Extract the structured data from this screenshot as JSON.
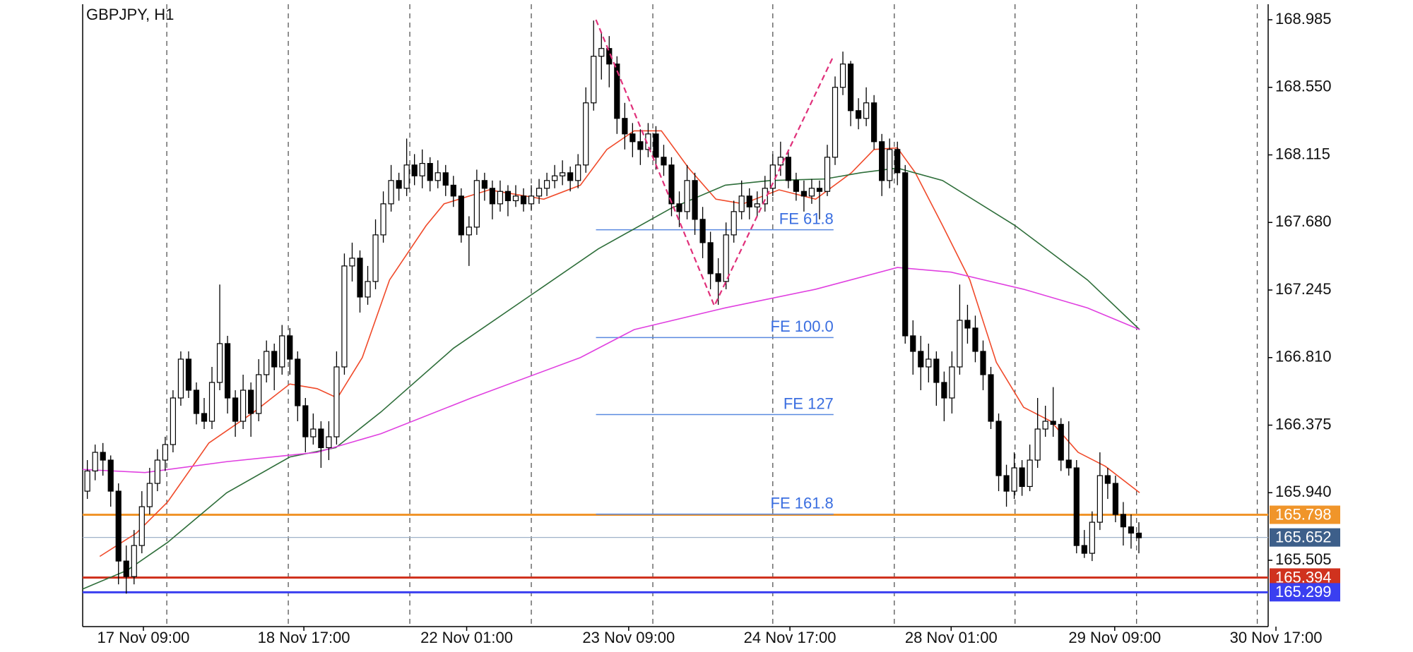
{
  "chart_data": {
    "type": "candlestick",
    "title": "GBPJPY, H1",
    "ylim": [
      165.078,
      169.085
    ],
    "xlim": [
      -0.6,
      151.6
    ],
    "yticks": [
      168.985,
      {
        "value": 168.55,
        "label": "168.550"
      },
      168.115,
      {
        "value": 167.68,
        "label": "167.680"
      },
      167.245,
      {
        "value": 166.81,
        "label": "166.810"
      },
      166.375,
      {
        "value": 165.94,
        "label": "165.940"
      },
      165.505
    ],
    "xticks": [
      {
        "value": 7.2,
        "label": "17 Nov 09:00"
      },
      {
        "value": 27.8,
        "label": "18 Nov 17:00"
      },
      {
        "value": 48.7,
        "label": "22 Nov 01:00"
      },
      {
        "value": 69.5,
        "label": "23 Nov 09:00"
      },
      {
        "value": 90.2,
        "label": "24 Nov 17:00"
      },
      {
        "value": 110.9,
        "label": "28 Nov 01:00"
      },
      {
        "value": 131.9,
        "label": "29 Nov 09:00"
      },
      {
        "value": 152.6,
        "label": "30 Nov 17:00"
      }
    ],
    "vgrid": [
      10.2,
      25.8,
      41.4,
      57,
      72.6,
      88,
      103.6,
      119.1,
      134.7,
      150.2
    ],
    "candles": [
      [
        165.95,
        166.15,
        165.9,
        166.08
      ],
      [
        166.08,
        166.25,
        166.02,
        166.2
      ],
      [
        166.2,
        166.26,
        166.05,
        166.15
      ],
      [
        166.15,
        166.18,
        165.85,
        165.95
      ],
      [
        165.95,
        166.0,
        165.35,
        165.5
      ],
      [
        165.5,
        165.6,
        165.29,
        165.4
      ],
      [
        165.4,
        165.7,
        165.35,
        165.6
      ],
      [
        165.6,
        165.95,
        165.55,
        165.85
      ],
      [
        165.85,
        166.1,
        165.8,
        166.0
      ],
      [
        166.0,
        166.22,
        165.95,
        166.15
      ],
      [
        166.15,
        166.3,
        166.08,
        166.25
      ],
      [
        166.25,
        166.6,
        166.2,
        166.55
      ],
      [
        166.55,
        166.85,
        166.5,
        166.8
      ],
      [
        166.8,
        166.85,
        166.55,
        166.6
      ],
      [
        166.6,
        166.65,
        166.38,
        166.45
      ],
      [
        166.45,
        166.55,
        166.35,
        166.4
      ],
      [
        166.4,
        166.75,
        166.35,
        166.65
      ],
      [
        166.65,
        167.28,
        166.6,
        166.9
      ],
      [
        166.9,
        166.95,
        166.45,
        166.55
      ],
      [
        166.55,
        166.6,
        166.3,
        166.4
      ],
      [
        166.4,
        166.7,
        166.35,
        166.6
      ],
      [
        166.6,
        166.65,
        166.3,
        166.45
      ],
      [
        166.45,
        166.8,
        166.4,
        166.7
      ],
      [
        166.7,
        166.92,
        166.65,
        166.85
      ],
      [
        166.85,
        166.9,
        166.6,
        166.75
      ],
      [
        166.75,
        167.02,
        166.7,
        166.95
      ],
      [
        166.95,
        167.0,
        166.7,
        166.8
      ],
      [
        166.8,
        166.85,
        166.4,
        166.5
      ],
      [
        166.5,
        166.55,
        166.2,
        166.3
      ],
      [
        166.3,
        166.45,
        166.25,
        166.35
      ],
      [
        166.35,
        166.4,
        166.1,
        166.23
      ],
      [
        166.23,
        166.4,
        166.15,
        166.3
      ],
      [
        166.3,
        166.85,
        166.25,
        166.75
      ],
      [
        166.75,
        167.48,
        166.7,
        167.4
      ],
      [
        167.4,
        167.55,
        167.3,
        167.45
      ],
      [
        167.45,
        167.5,
        167.1,
        167.2
      ],
      [
        167.2,
        167.4,
        167.15,
        167.3
      ],
      [
        167.3,
        167.7,
        167.25,
        167.6
      ],
      [
        167.6,
        167.88,
        167.55,
        167.8
      ],
      [
        167.8,
        168.05,
        167.75,
        167.95
      ],
      [
        167.95,
        168.0,
        167.82,
        167.9
      ],
      [
        167.9,
        168.22,
        167.85,
        168.05
      ],
      [
        168.05,
        168.12,
        167.92,
        167.98
      ],
      [
        167.98,
        168.15,
        167.9,
        168.06
      ],
      [
        168.06,
        168.1,
        167.88,
        167.95
      ],
      [
        167.95,
        168.08,
        167.9,
        168.0
      ],
      [
        168.0,
        168.05,
        167.85,
        167.92
      ],
      [
        167.92,
        167.98,
        167.78,
        167.85
      ],
      [
        167.85,
        167.9,
        167.55,
        167.6
      ],
      [
        167.6,
        167.72,
        167.4,
        167.65
      ],
      [
        167.65,
        168.02,
        167.6,
        167.95
      ],
      [
        167.95,
        168.0,
        167.82,
        167.9
      ],
      [
        167.9,
        167.95,
        167.7,
        167.8
      ],
      [
        167.8,
        167.95,
        167.75,
        167.88
      ],
      [
        167.88,
        167.92,
        167.72,
        167.82
      ],
      [
        167.82,
        167.92,
        167.78,
        167.85
      ],
      [
        167.85,
        167.9,
        167.75,
        167.8
      ],
      [
        167.8,
        167.92,
        167.76,
        167.85
      ],
      [
        167.85,
        167.96,
        167.8,
        167.9
      ],
      [
        167.9,
        168.0,
        167.85,
        167.95
      ],
      [
        167.95,
        168.05,
        167.9,
        167.98
      ],
      [
        167.98,
        168.08,
        167.92,
        168.0
      ],
      [
        168.0,
        168.04,
        167.88,
        167.95
      ],
      [
        167.95,
        168.12,
        167.9,
        168.05
      ],
      [
        168.05,
        168.55,
        168.0,
        168.45
      ],
      [
        168.45,
        168.98,
        168.4,
        168.75
      ],
      [
        168.75,
        168.9,
        168.6,
        168.8
      ],
      [
        168.8,
        168.88,
        168.55,
        168.7
      ],
      [
        168.7,
        168.75,
        168.25,
        168.35
      ],
      [
        168.35,
        168.45,
        168.15,
        168.25
      ],
      [
        168.25,
        168.32,
        168.1,
        168.2
      ],
      [
        168.2,
        168.28,
        168.05,
        168.15
      ],
      [
        168.15,
        168.32,
        168.1,
        168.25
      ],
      [
        168.25,
        168.3,
        168.02,
        168.1
      ],
      [
        168.1,
        168.18,
        167.98,
        168.05
      ],
      [
        168.05,
        168.1,
        167.72,
        167.8
      ],
      [
        167.8,
        167.88,
        167.65,
        167.75
      ],
      [
        167.75,
        168.05,
        167.7,
        167.95
      ],
      [
        167.95,
        168.0,
        167.6,
        167.7
      ],
      [
        167.7,
        167.78,
        167.45,
        167.55
      ],
      [
        167.55,
        167.62,
        167.25,
        167.35
      ],
      [
        167.35,
        167.45,
        167.15,
        167.3
      ],
      [
        167.3,
        167.68,
        167.25,
        167.6
      ],
      [
        167.6,
        167.82,
        167.55,
        167.75
      ],
      [
        167.75,
        167.95,
        167.7,
        167.85
      ],
      [
        167.85,
        167.9,
        167.7,
        167.78
      ],
      [
        167.78,
        167.88,
        167.72,
        167.8
      ],
      [
        167.8,
        167.98,
        167.75,
        167.9
      ],
      [
        167.9,
        168.12,
        167.85,
        168.05
      ],
      [
        168.05,
        168.2,
        167.98,
        168.1
      ],
      [
        168.1,
        168.15,
        167.9,
        167.95
      ],
      [
        167.95,
        168.0,
        167.82,
        167.88
      ],
      [
        167.88,
        167.95,
        167.75,
        167.85
      ],
      [
        167.85,
        167.96,
        167.8,
        167.9
      ],
      [
        167.9,
        167.95,
        167.7,
        167.88
      ],
      [
        167.88,
        168.18,
        167.85,
        168.1
      ],
      [
        168.1,
        168.62,
        168.05,
        168.55
      ],
      [
        168.55,
        168.78,
        168.5,
        168.7
      ],
      [
        168.7,
        168.72,
        168.3,
        168.4
      ],
      [
        168.4,
        168.48,
        168.28,
        168.35
      ],
      [
        168.35,
        168.55,
        168.3,
        168.45
      ],
      [
        168.45,
        168.5,
        168.15,
        168.2
      ],
      [
        168.2,
        168.25,
        167.85,
        167.95
      ],
      [
        167.95,
        168.22,
        167.9,
        168.15
      ],
      [
        168.15,
        168.2,
        167.92,
        168.0
      ],
      [
        168.0,
        168.05,
        166.9,
        166.95
      ],
      [
        166.95,
        167.05,
        166.7,
        166.85
      ],
      [
        166.85,
        166.95,
        166.6,
        166.75
      ],
      [
        166.75,
        166.9,
        166.65,
        166.8
      ],
      [
        166.8,
        166.85,
        166.5,
        166.65
      ],
      [
        166.65,
        166.72,
        166.4,
        166.55
      ],
      [
        166.55,
        166.85,
        166.45,
        166.75
      ],
      [
        166.75,
        167.28,
        166.7,
        167.05
      ],
      [
        167.05,
        167.15,
        166.9,
        167.0
      ],
      [
        167.0,
        167.08,
        166.78,
        166.85
      ],
      [
        166.85,
        166.92,
        166.6,
        166.7
      ],
      [
        166.7,
        166.75,
        166.35,
        166.4
      ],
      [
        166.4,
        166.45,
        165.95,
        166.05
      ],
      [
        166.05,
        166.12,
        165.85,
        165.95
      ],
      [
        165.95,
        166.2,
        165.9,
        166.1
      ],
      [
        166.1,
        166.15,
        165.92,
        165.98
      ],
      [
        165.98,
        166.25,
        165.95,
        166.15
      ],
      [
        166.15,
        166.55,
        166.1,
        166.35
      ],
      [
        166.35,
        166.5,
        166.3,
        166.4
      ],
      [
        166.4,
        166.62,
        166.3,
        166.38
      ],
      [
        166.38,
        166.42,
        166.08,
        166.15
      ],
      [
        166.15,
        166.4,
        166.05,
        166.1
      ],
      [
        166.1,
        166.15,
        165.55,
        165.6
      ],
      [
        165.6,
        165.7,
        165.52,
        165.55
      ],
      [
        165.55,
        165.82,
        165.5,
        165.75
      ],
      [
        165.75,
        166.2,
        165.7,
        166.05
      ],
      [
        166.05,
        166.1,
        165.9,
        166.0
      ],
      [
        166.0,
        166.05,
        165.75,
        165.8
      ],
      [
        165.8,
        165.88,
        165.6,
        165.72
      ],
      [
        165.72,
        165.8,
        165.58,
        165.68
      ],
      [
        165.68,
        165.75,
        165.55,
        165.65
      ]
    ],
    "series": [
      {
        "color": "#f04a2a",
        "x": [
          1.6,
          6.3,
          10.3,
          15.6,
          21.4,
          26,
          29.5,
          32.1,
          35.3,
          38.8,
          43.5,
          45.8,
          51.6,
          58.6,
          63.3,
          66.7,
          70.2,
          73.7,
          77.2,
          80.7,
          84.2,
          88.8,
          93.5,
          98.1,
          101,
          104,
          106.3,
          109.8,
          113.3,
          116.7,
          120.2,
          123.7,
          127.2,
          130.7,
          135.1
        ],
        "values": [
          165.53,
          165.68,
          165.88,
          166.26,
          166.46,
          166.64,
          166.61,
          166.55,
          166.81,
          167.31,
          167.66,
          167.8,
          167.89,
          167.83,
          167.92,
          168.15,
          168.27,
          168.27,
          168.03,
          167.83,
          167.8,
          167.89,
          167.83,
          168.0,
          168.15,
          168.16,
          168.0,
          167.66,
          167.31,
          166.78,
          166.49,
          166.4,
          166.2,
          166.11,
          165.94
        ]
      },
      {
        "color": "#2e6e3a",
        "x": [
          -0.6,
          5.1,
          10.3,
          17.9,
          26,
          31.9,
          37.7,
          47,
          56.3,
          65.6,
          74.9,
          81.9,
          87.7,
          94.7,
          99.3,
          104,
          109.8,
          119.1,
          128.4,
          135.1
        ],
        "values": [
          165.32,
          165.44,
          165.62,
          165.94,
          166.17,
          166.23,
          166.46,
          166.87,
          167.19,
          167.51,
          167.77,
          167.92,
          167.95,
          167.96,
          168.0,
          168.03,
          167.95,
          167.66,
          167.31,
          166.99
        ]
      },
      {
        "color": "#e040e0",
        "x": [
          -0.6,
          7.4,
          17.9,
          29.5,
          37.7,
          49.3,
          63.3,
          70.2,
          81.9,
          93.5,
          104,
          110.9,
          120.2,
          128.4,
          135.1
        ],
        "values": [
          166.09,
          166.07,
          166.14,
          166.2,
          166.32,
          166.55,
          166.81,
          166.99,
          167.13,
          167.25,
          167.39,
          167.36,
          167.25,
          167.13,
          166.99
        ]
      }
    ],
    "zigzag": {
      "color": "#e0307a",
      "x": [
        65.3,
        80.5,
        95.8
      ],
      "values": [
        168.985,
        167.143,
        168.752
      ]
    },
    "fe_levels": {
      "color": "#5a8ae0",
      "x_range": [
        65.3,
        95.8
      ],
      "levels": [
        {
          "label": "FE 61.8",
          "value": 167.633
        },
        {
          "label": "FE 100.0",
          "value": 166.939
        },
        {
          "label": "FE 127",
          "value": 166.443
        },
        {
          "label": "FE 161.8",
          "value": 165.802
        }
      ]
    },
    "hlines": [
      {
        "value": 165.798,
        "color": "#f0952a",
        "box": "#f0952a"
      },
      {
        "value": 165.652,
        "color": "#9fb2c8",
        "box": "#3d5f8a"
      },
      {
        "value": 165.394,
        "color": "#d0321e",
        "box": "#d0321e"
      },
      {
        "value": 165.299,
        "color": "#3a3ff0",
        "box": "#3a3ff0"
      }
    ]
  }
}
